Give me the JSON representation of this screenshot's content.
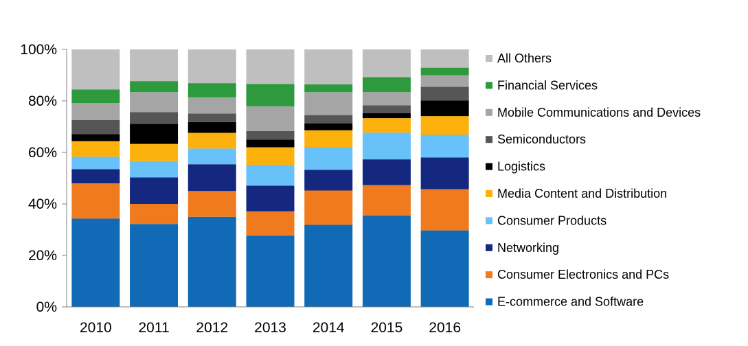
{
  "chart_data": {
    "type": "bar",
    "stacked": true,
    "percent": true,
    "categories": [
      "2010",
      "2011",
      "2012",
      "2013",
      "2014",
      "2015",
      "2016"
    ],
    "ylim": [
      0,
      100
    ],
    "yticks": [
      0,
      20,
      40,
      60,
      80,
      100
    ],
    "ytick_labels": [
      "0%",
      "20%",
      "40%",
      "60%",
      "80%",
      "100%"
    ],
    "grid": false,
    "legend_position": "right",
    "series": [
      {
        "name": "E-commerce and Software",
        "color": "#106ab6",
        "values": [
          34.3,
          32.2,
          35.0,
          27.6,
          31.9,
          35.5,
          29.7
        ]
      },
      {
        "name": "Consumer Electronics and PCs",
        "color": "#f07a1e",
        "values": [
          13.7,
          7.8,
          10.0,
          9.5,
          13.3,
          11.8,
          16.0
        ]
      },
      {
        "name": "Networking",
        "color": "#14287f",
        "values": [
          5.5,
          10.3,
          10.4,
          10.0,
          8.0,
          10.0,
          12.3
        ]
      },
      {
        "name": "Consumer Products",
        "color": "#68c1f8",
        "values": [
          4.8,
          6.3,
          6.1,
          8.1,
          8.8,
          10.4,
          8.8
        ]
      },
      {
        "name": "Media Content and Distribution",
        "color": "#fcb10d",
        "values": [
          6.1,
          6.7,
          6.1,
          6.8,
          6.6,
          5.6,
          7.3
        ]
      },
      {
        "name": "Logistics",
        "color": "#000000",
        "values": [
          2.7,
          7.8,
          4.2,
          3.0,
          2.7,
          1.9,
          6.1
        ]
      },
      {
        "name": "Semiconductors",
        "color": "#565656",
        "values": [
          5.5,
          4.5,
          3.3,
          3.3,
          3.2,
          3.1,
          5.3
        ]
      },
      {
        "name": "Mobile Communications and Devices",
        "color": "#a5a5a5",
        "values": [
          6.6,
          7.8,
          6.3,
          9.6,
          8.9,
          5.1,
          4.5
        ]
      },
      {
        "name": "Financial Services",
        "color": "#2e9a3e",
        "values": [
          5.2,
          4.3,
          5.5,
          8.7,
          3.0,
          5.8,
          2.9
        ]
      },
      {
        "name": "All Others",
        "color": "#bfbfbf",
        "values": [
          15.6,
          12.3,
          13.1,
          13.4,
          13.6,
          10.8,
          7.1
        ]
      }
    ]
  }
}
